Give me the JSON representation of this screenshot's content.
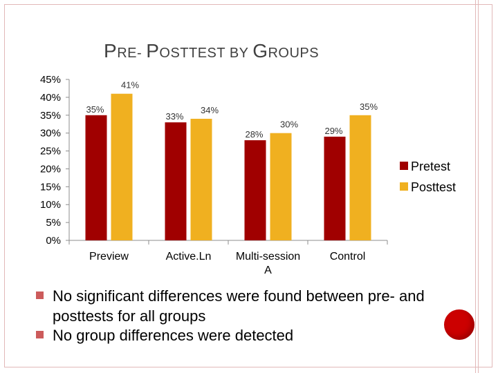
{
  "slide": {
    "title_parts": [
      {
        "text": "P",
        "size": "cap"
      },
      {
        "text": "RE",
        "size": "sm"
      },
      {
        "text": "- ",
        "size": "sm"
      },
      {
        "text": "P",
        "size": "cap"
      },
      {
        "text": "OSTTEST BY ",
        "size": "sm"
      },
      {
        "text": "G",
        "size": "cap"
      },
      {
        "text": "ROUPS",
        "size": "sm"
      }
    ],
    "bullets": [
      "No significant differences were found between pre- and posttests for all groups",
      "No group differences were detected"
    ]
  },
  "colors": {
    "pretest": "#a00000",
    "posttest": "#f0b020",
    "accent_dot": "#cc0000",
    "frame": "#e2b8b8"
  },
  "chart_data": {
    "type": "bar",
    "title": "Pre- Posttest by Groups",
    "categories": [
      [
        "Preview"
      ],
      [
        "Active.Ln"
      ],
      [
        "Multi-session",
        "A"
      ],
      [
        "Control"
      ]
    ],
    "series": [
      {
        "name": "Pretest",
        "values": [
          35,
          33,
          28,
          29
        ],
        "labels": [
          "35%",
          "33%",
          "28%",
          "29%"
        ]
      },
      {
        "name": "Posttest",
        "values": [
          41,
          34,
          30,
          35
        ],
        "labels": [
          "41%",
          "34%",
          "30%",
          "35%"
        ]
      }
    ],
    "ylim": [
      0,
      45
    ],
    "yticks": [
      0,
      5,
      10,
      15,
      20,
      25,
      30,
      35,
      40,
      45
    ],
    "ytick_labels": [
      "0%",
      "5%",
      "10%",
      "15%",
      "20%",
      "25%",
      "30%",
      "35%",
      "40%",
      "45%"
    ],
    "xlabel": "",
    "ylabel": "",
    "legend_position": "right"
  }
}
